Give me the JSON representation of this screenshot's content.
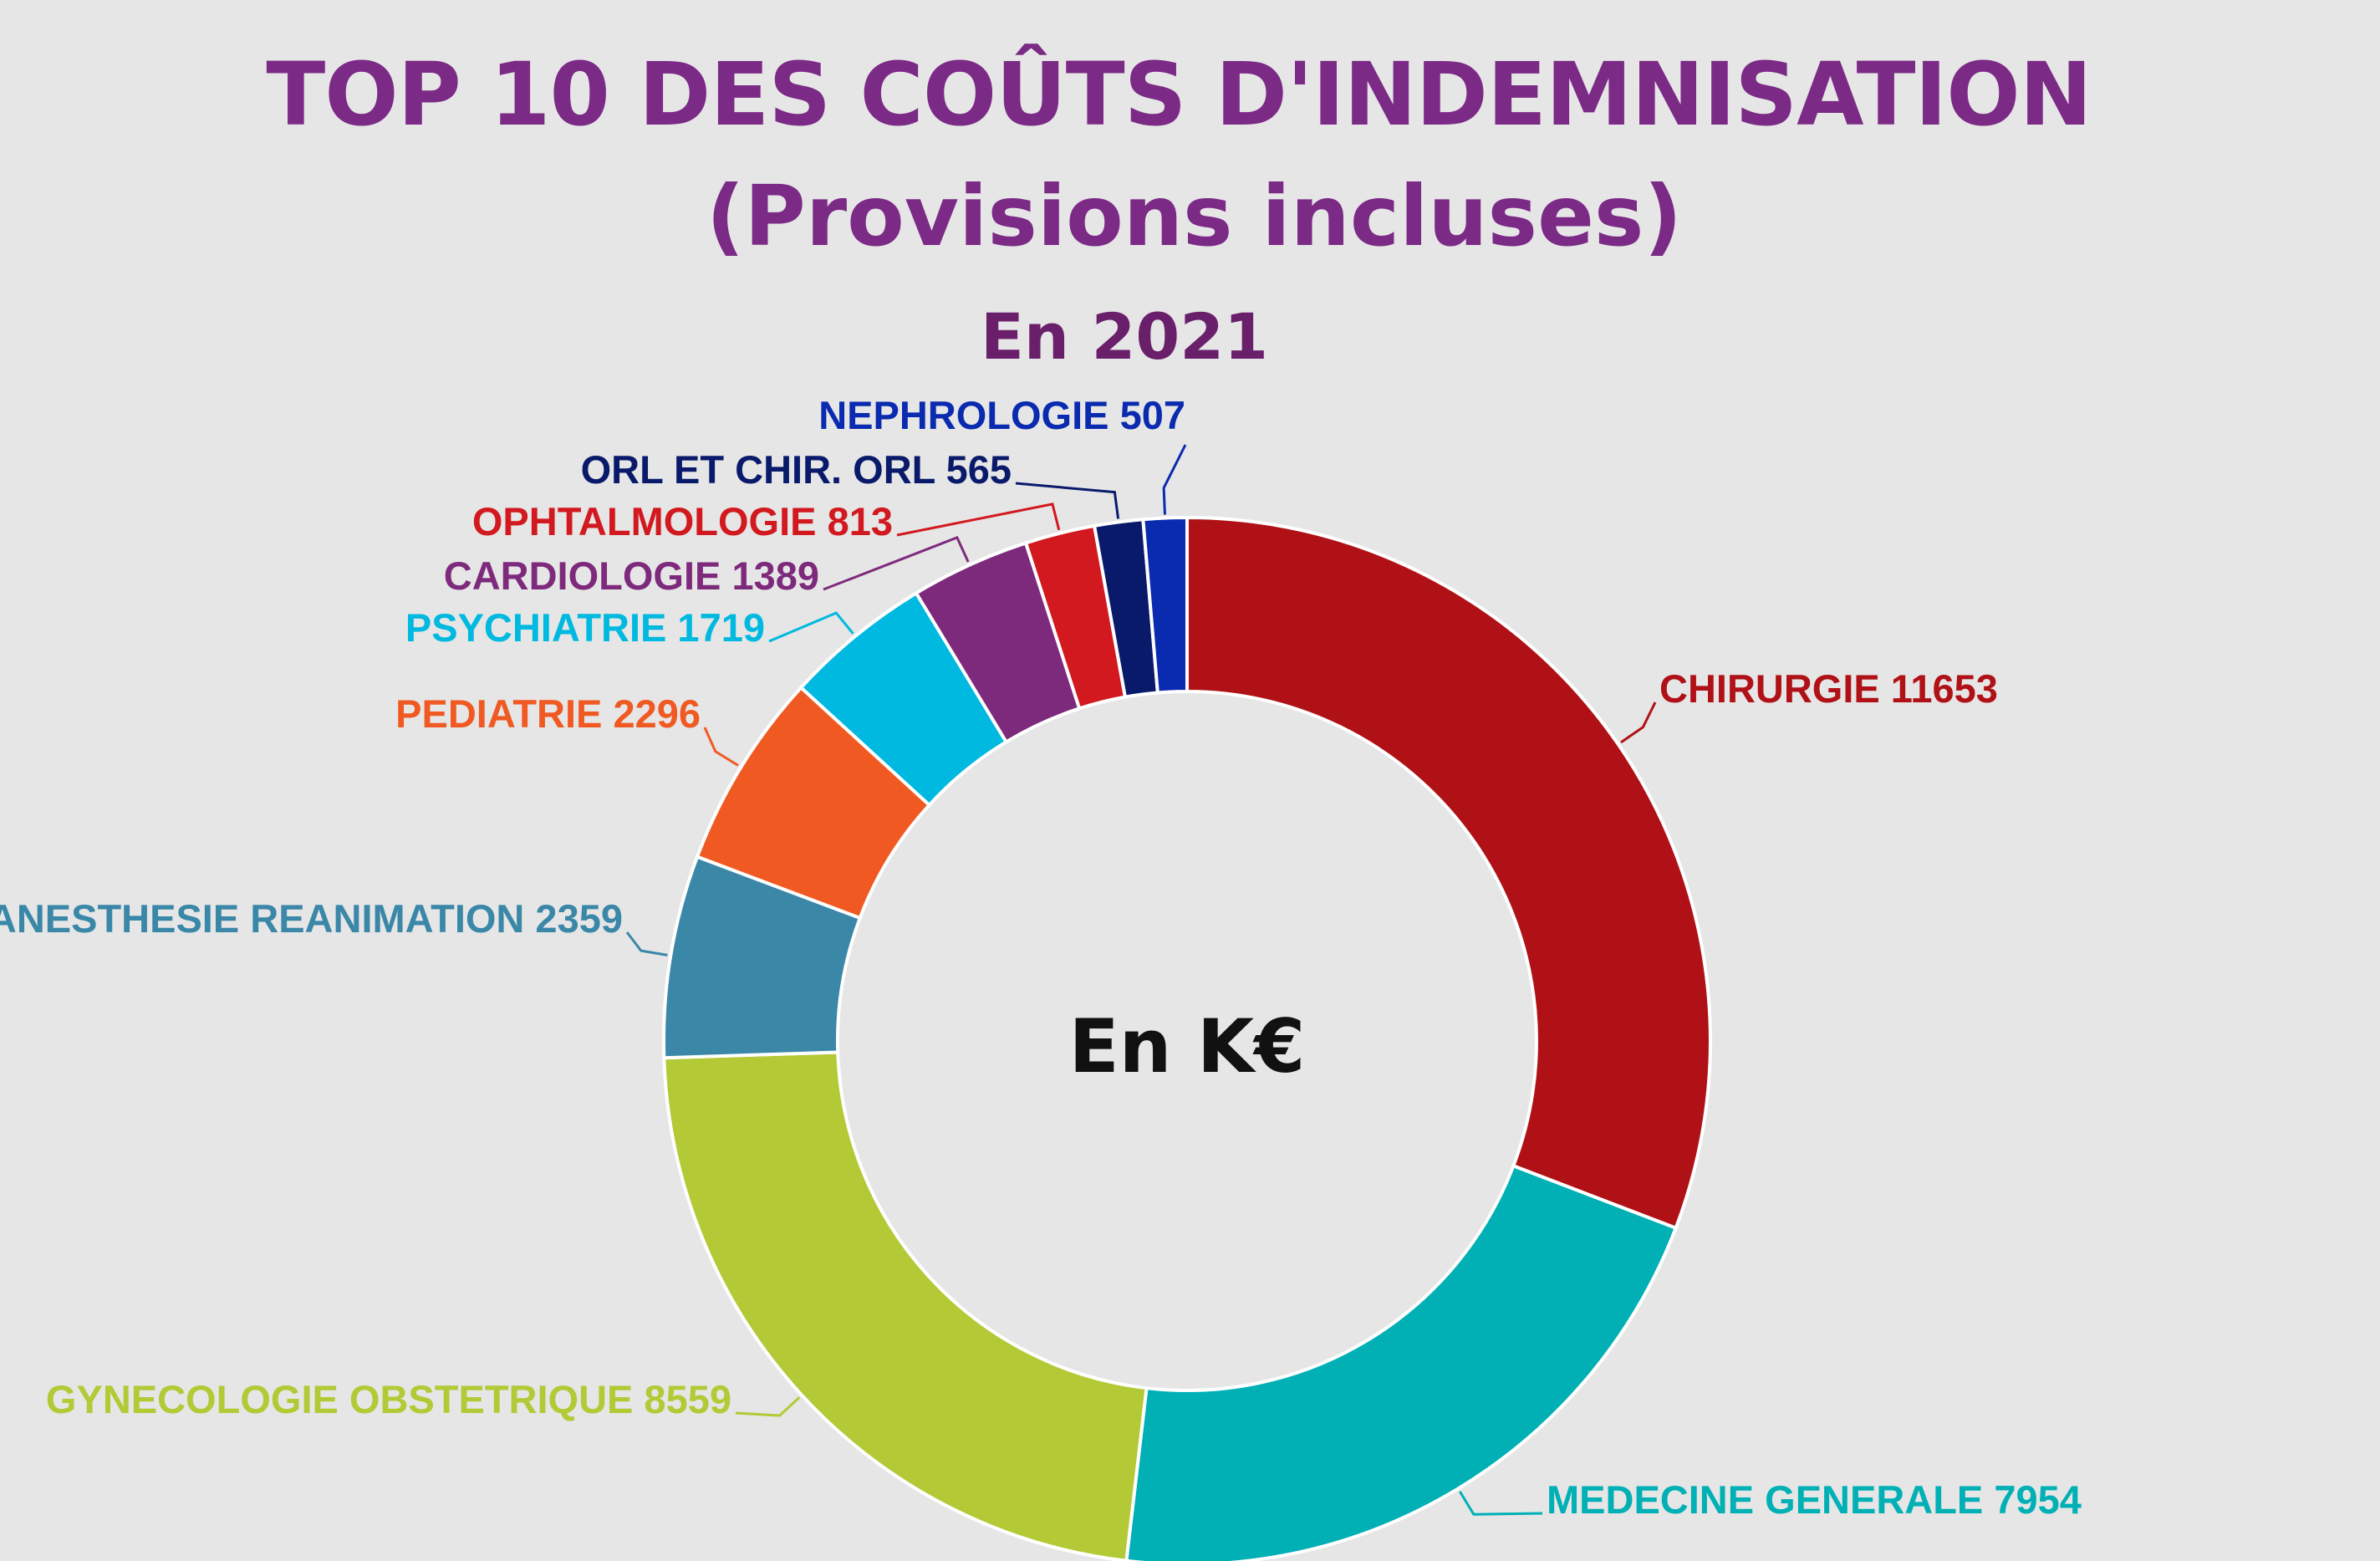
{
  "chart_data": {
    "type": "pie",
    "variant": "donut",
    "title": "TOP 10 DES COÛTS D'INDEMNISATION",
    "subtitle_line": "(Provisions incluses)",
    "year_label": "En 2021",
    "center_label": "En K€",
    "unit": "K€",
    "slices": [
      {
        "name": "CHIRURGIE",
        "value": 11653,
        "color": "#b01116"
      },
      {
        "name": "MEDECINE GENERALE",
        "value": 7954,
        "color": "#00b0b5"
      },
      {
        "name": "GYNECOLOGIE OBSTETRIQUE",
        "value": 8559,
        "color": "#b3c935"
      },
      {
        "name": "ANESTHESIE REANIMATION",
        "value": 2359,
        "color": "#3a87a8"
      },
      {
        "name": "PEDIATRIE",
        "value": 2296,
        "color": "#f05a22"
      },
      {
        "name": "PSYCHIATRIE",
        "value": 1719,
        "color": "#00b9e0"
      },
      {
        "name": "CARDIOLOGIE",
        "value": 1389,
        "color": "#7e2a7c"
      },
      {
        "name": "OPHTALMOLOGIE",
        "value": 813,
        "color": "#d2191f"
      },
      {
        "name": "ORL ET CHIR. ORL",
        "value": 565,
        "color": "#0a1a6b"
      },
      {
        "name": "NEPHROLOGIE",
        "value": 507,
        "color": "#0a2bb0"
      }
    ],
    "labels": [
      "CHIRURGIE 11653",
      "MEDECINE GENERALE 7954",
      "GYNECOLOGIE OBSTETRIQUE 8559",
      "ANESTHESIE REANIMATION 2359",
      "PEDIATRIE 2296",
      "PSYCHIATRIE 1719",
      "CARDIOLOGIE 1389",
      "OPHTALMOLOGIE 813",
      "ORL ET CHIR. ORL 565",
      "NEPHROLOGIE 507"
    ]
  }
}
